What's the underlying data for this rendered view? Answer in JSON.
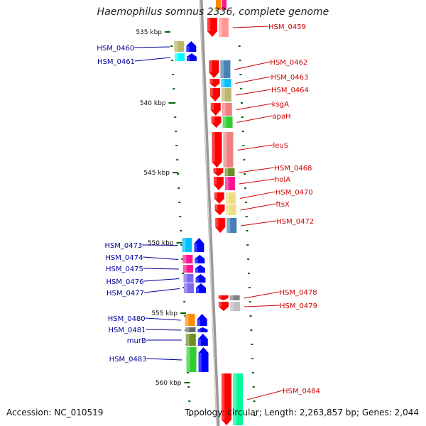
{
  "title": "Haemophilus somnus 2336, complete genome",
  "footer": {
    "accession": "Accession: NC_010519",
    "topology": "Topology: circular; Length: 2,263,857 bp; Genes: 2,044"
  },
  "scale": {
    "unit": "kbp",
    "ticks": [
      535,
      540,
      545,
      550,
      555,
      560
    ]
  },
  "genes_right": [
    {
      "name": "HSM_0459",
      "color": "#ff9999"
    },
    {
      "name": "HSM_0462",
      "color": "#4682b4"
    },
    {
      "name": "HSM_0463",
      "color": "#00bfff"
    },
    {
      "name": "HSM_0464",
      "color": "#bdb76b"
    },
    {
      "name": "ksgA",
      "color": "#f08080"
    },
    {
      "name": "apaH",
      "color": "#32cd32"
    },
    {
      "name": "leuS",
      "color": "#f08080"
    },
    {
      "name": "HSM_0468",
      "color": "#6b8e23"
    },
    {
      "name": "holA",
      "color": "#ff1493"
    },
    {
      "name": "HSM_0470",
      "color": "#eedd82"
    },
    {
      "name": "ftsX",
      "color": "#eedd82"
    },
    {
      "name": "HSM_0472",
      "color": "#4682b4"
    },
    {
      "name": "HSM_0478",
      "color": "#808080"
    },
    {
      "name": "HSM_0479",
      "color": "#c0c0c0"
    },
    {
      "name": "HSM_0484",
      "color": "#00fa9a"
    }
  ],
  "genes_left": [
    {
      "name": "HSM_0460",
      "color": "#bdb76b"
    },
    {
      "name": "HSM_0461",
      "color": "#00ffff"
    },
    {
      "name": "HSM_0473",
      "color": "#00bfff"
    },
    {
      "name": "HSM_0474",
      "color": "#ff1493"
    },
    {
      "name": "HSM_0475",
      "color": "#ff1493"
    },
    {
      "name": "HSM_0476",
      "color": "#7b68ee"
    },
    {
      "name": "HSM_0477",
      "color": "#7b68ee"
    },
    {
      "name": "HSM_0480",
      "color": "#ff8c00"
    },
    {
      "name": "HSM_0481",
      "color": "#696969"
    },
    {
      "name": "murB",
      "color": "#6b8e23"
    },
    {
      "name": "HSM_0483",
      "color": "#32cd32"
    }
  ],
  "colors": {
    "forward_strand": "#ff0000",
    "reverse_strand": "#0000ff",
    "backbone": "#999999",
    "ruler": "#006400",
    "right_label": "#cc0000",
    "left_label": "#000099"
  }
}
